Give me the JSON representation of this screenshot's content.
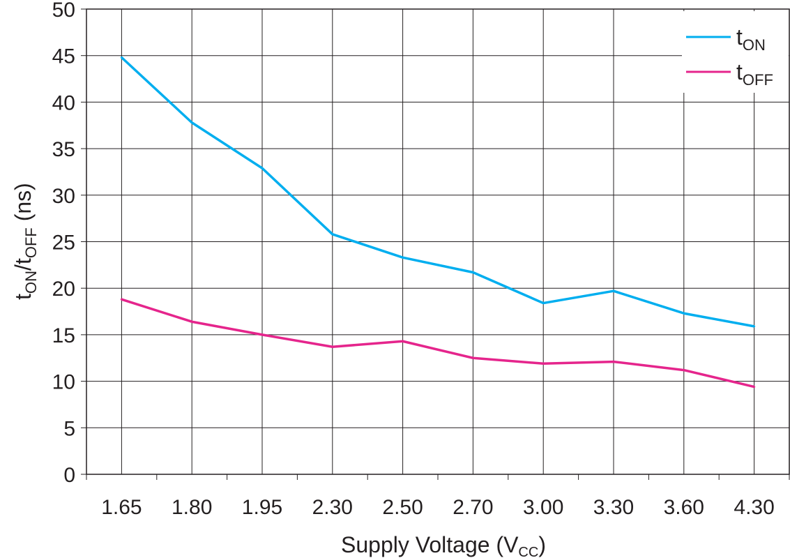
{
  "chart_data": {
    "type": "line",
    "title": "",
    "xlabel": {
      "main": "Supply Voltage (V",
      "sub": "CC",
      "close": ")"
    },
    "ylabel": {
      "t1": "t",
      "sub1": "ON",
      "slash": "/t",
      "sub2": "OFF",
      "unit": " (ns)"
    },
    "categories": [
      "1.65",
      "1.80",
      "1.95",
      "2.30",
      "2.50",
      "2.70",
      "3.00",
      "3.30",
      "3.60",
      "4.30"
    ],
    "ylim": [
      0,
      50
    ],
    "yticks": [
      "0",
      "5",
      "10",
      "15",
      "20",
      "25",
      "30",
      "35",
      "40",
      "45",
      "50"
    ],
    "grid": true,
    "legend_position": "top-right",
    "series": [
      {
        "name": {
          "base": "t",
          "sub": "ON"
        },
        "color": "#00aeef",
        "values": [
          44.8,
          37.8,
          32.9,
          25.8,
          23.3,
          21.7,
          18.4,
          19.7,
          17.3,
          15.9
        ]
      },
      {
        "name": {
          "base": "t",
          "sub": "OFF"
        },
        "color": "#e5258c",
        "values": [
          18.8,
          16.4,
          15.0,
          13.7,
          14.3,
          12.5,
          11.9,
          12.1,
          11.2,
          9.4
        ]
      }
    ]
  }
}
